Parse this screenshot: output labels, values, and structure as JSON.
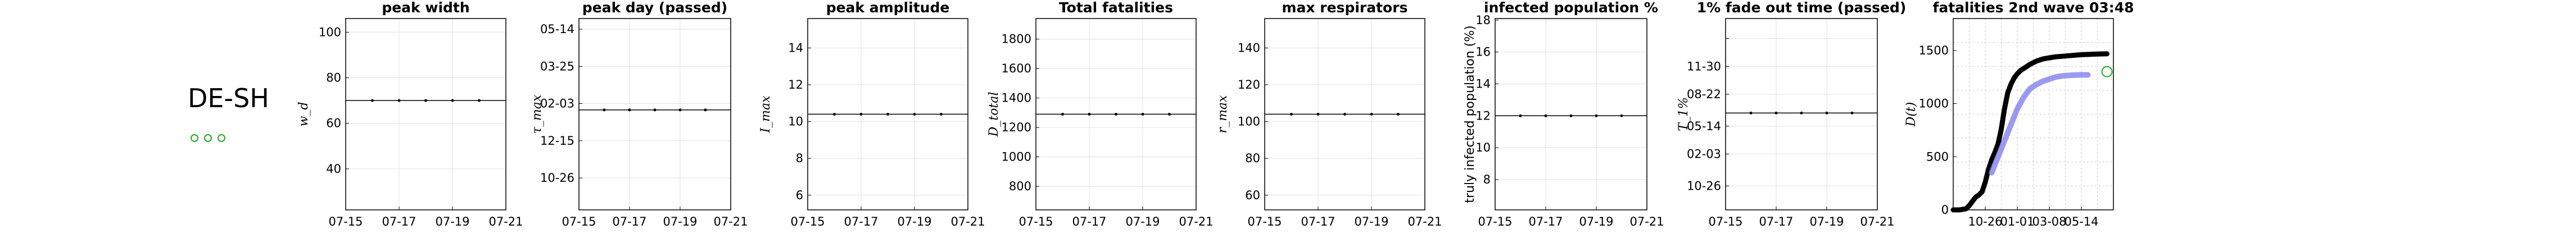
{
  "region": "DE-SH",
  "status_dots": {
    "count": 3,
    "color": "#22aa22"
  },
  "chart_data": [
    {
      "type": "line",
      "title": "peak width",
      "ylabel": "w_d",
      "ylim": [
        22,
        106
      ],
      "yticks": [
        40,
        60,
        80,
        100
      ],
      "yticklabels": [
        "40",
        "60",
        "80",
        "100"
      ],
      "categories": [
        "07-15",
        "07-16",
        "07-17",
        "07-18",
        "07-19",
        "07-20",
        "07-21"
      ],
      "xticklabels": [
        "07-15",
        "07-17",
        "07-19",
        "07-21"
      ],
      "values": [
        70,
        70,
        70,
        70,
        70,
        70,
        70
      ],
      "grid": true
    },
    {
      "type": "line",
      "title": "peak day (passed)",
      "ylabel": "τ_max",
      "ylim": [
        0,
        36
      ],
      "yticks": [
        6,
        13,
        20,
        27,
        34
      ],
      "yticklabels": [
        "10-26",
        "12-15",
        "02-03",
        "03-25",
        "05-14"
      ],
      "categories": [
        "07-15",
        "07-16",
        "07-17",
        "07-18",
        "07-19",
        "07-20",
        "07-21"
      ],
      "xticklabels": [
        "07-15",
        "07-17",
        "07-19",
        "07-21"
      ],
      "values": [
        18.8,
        18.8,
        18.8,
        18.8,
        18.8,
        18.8,
        18.8
      ],
      "grid": true
    },
    {
      "type": "line",
      "title": "peak amplitude",
      "ylabel": "I_max",
      "ylim": [
        5.2,
        15.6
      ],
      "yticks": [
        6,
        8,
        10,
        12,
        14
      ],
      "yticklabels": [
        "6",
        "8",
        "10",
        "12",
        "14"
      ],
      "categories": [
        "07-15",
        "07-16",
        "07-17",
        "07-18",
        "07-19",
        "07-20",
        "07-21"
      ],
      "xticklabels": [
        "07-15",
        "07-17",
        "07-19",
        "07-21"
      ],
      "values": [
        10.4,
        10.4,
        10.4,
        10.4,
        10.4,
        10.4,
        10.4
      ],
      "grid": true
    },
    {
      "type": "line",
      "title": "Total fatalities",
      "ylabel": "D_total",
      "ylim": [
        640,
        1940
      ],
      "yticks": [
        800,
        1000,
        1200,
        1400,
        1600,
        1800
      ],
      "yticklabels": [
        "800",
        "1000",
        "1200",
        "1400",
        "1600",
        "1800"
      ],
      "categories": [
        "07-15",
        "07-16",
        "07-17",
        "07-18",
        "07-19",
        "07-20",
        "07-21"
      ],
      "xticklabels": [
        "07-15",
        "07-17",
        "07-19",
        "07-21"
      ],
      "values": [
        1290,
        1290,
        1290,
        1290,
        1290,
        1290,
        1290
      ],
      "grid": true
    },
    {
      "type": "line",
      "title": "max respirators",
      "ylabel": "r_max",
      "ylim": [
        52,
        156
      ],
      "yticks": [
        60,
        80,
        100,
        120,
        140
      ],
      "yticklabels": [
        "60",
        "80",
        "100",
        "120",
        "140"
      ],
      "categories": [
        "07-15",
        "07-16",
        "07-17",
        "07-18",
        "07-19",
        "07-20",
        "07-21"
      ],
      "xticklabels": [
        "07-15",
        "07-17",
        "07-19",
        "07-21"
      ],
      "values": [
        104,
        104,
        104,
        104,
        104,
        104,
        104
      ],
      "grid": true
    },
    {
      "type": "line",
      "title": "infected population %",
      "ylabel": "truly infected population (%)",
      "ylim": [
        6.1,
        18.1
      ],
      "yticks": [
        8,
        10,
        12,
        14,
        16,
        18
      ],
      "yticklabels": [
        "8",
        "10",
        "12",
        "14",
        "16",
        "18"
      ],
      "categories": [
        "07-15",
        "07-16",
        "07-17",
        "07-18",
        "07-19",
        "07-20",
        "07-21"
      ],
      "xticklabels": [
        "07-15",
        "07-17",
        "07-19",
        "07-21"
      ],
      "values": [
        12,
        12,
        12,
        12,
        12,
        12,
        12
      ],
      "grid": true
    },
    {
      "type": "line",
      "title": "1% fade out time (passed)",
      "ylabel": "T_1%",
      "ylim": [
        0,
        48
      ],
      "yticks": [
        6,
        14,
        21,
        29,
        36,
        43
      ],
      "yticklabels": [
        "10-26",
        "02-03",
        "05-14",
        "08-22",
        "11-30",
        ""
      ],
      "yticklabels_visible": [
        "10-26",
        "02-03",
        "05-14",
        "08-22",
        "11-30"
      ],
      "categories": [
        "07-15",
        "07-16",
        "07-17",
        "07-18",
        "07-19",
        "07-20",
        "07-21"
      ],
      "xticklabels": [
        "07-15",
        "07-17",
        "07-19",
        "07-21"
      ],
      "values": [
        24.3,
        24.3,
        24.3,
        24.3,
        24.3,
        24.3,
        24.3
      ],
      "grid": true
    },
    {
      "type": "line",
      "title": "fatalities 2nd wave 03:48",
      "ylabel": "D(t)",
      "ylim": [
        0,
        1800
      ],
      "yticks": [
        0,
        500,
        1000,
        1500
      ],
      "yticklabels": [
        "0",
        "500",
        "1000",
        "1500"
      ],
      "xticklabels": [
        "10-26",
        "01-01",
        "03-08",
        "05-14"
      ],
      "xticks": [
        10,
        20,
        30,
        40
      ],
      "xlim": [
        0,
        50
      ],
      "series": [
        {
          "color": "#000000",
          "x": [
            0,
            2,
            4,
            5,
            6,
            7,
            8,
            9,
            10,
            11,
            12,
            13,
            14,
            15,
            16,
            17,
            18,
            19,
            20,
            21,
            22,
            23,
            24,
            26,
            28,
            30,
            32,
            34,
            36,
            38,
            40,
            42,
            44,
            46,
            48
          ],
          "y": [
            0,
            0,
            10,
            40,
            80,
            120,
            140,
            170,
            260,
            380,
            470,
            540,
            620,
            760,
            950,
            1100,
            1180,
            1240,
            1280,
            1310,
            1330,
            1350,
            1370,
            1400,
            1420,
            1430,
            1440,
            1445,
            1450,
            1455,
            1460,
            1462,
            1465,
            1467,
            1468
          ]
        },
        {
          "color": "#8888ee",
          "x": [
            12,
            14,
            16,
            18,
            20,
            22,
            24,
            26,
            28,
            30,
            32,
            34,
            36,
            38,
            40,
            42
          ],
          "y": [
            350,
            500,
            650,
            800,
            950,
            1060,
            1140,
            1180,
            1210,
            1230,
            1250,
            1260,
            1265,
            1268,
            1270,
            1270
          ]
        },
        {
          "color": "#22aa22",
          "x": [
            48
          ],
          "y": [
            1300
          ]
        }
      ],
      "grid": true
    }
  ]
}
